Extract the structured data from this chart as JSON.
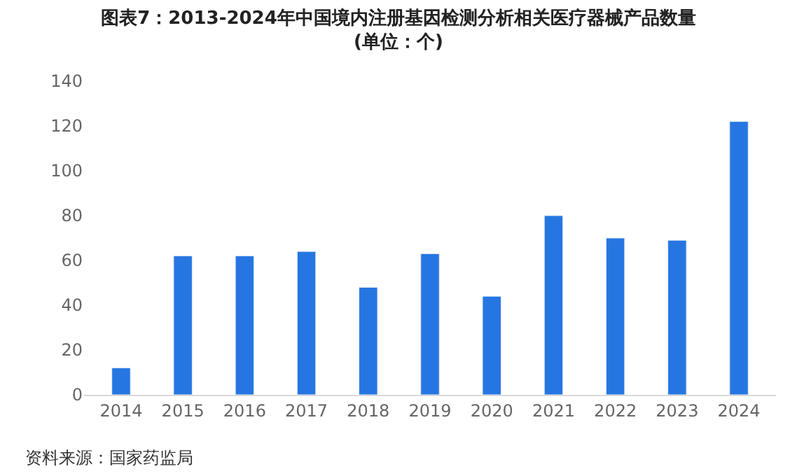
{
  "chart_data": {
    "type": "bar",
    "title": "图表7：2013-2024年中国境内注册基因检测分析相关医疗器械产品数量\n(单位：个)",
    "categories": [
      "2014",
      "2015",
      "2016",
      "2017",
      "2018",
      "2019",
      "2020",
      "2021",
      "2022",
      "2023",
      "2024"
    ],
    "values": [
      12,
      62,
      62,
      64,
      48,
      63,
      44,
      80,
      70,
      69,
      122
    ],
    "color": "#2676e2",
    "ylim": [
      0,
      140
    ],
    "yticks": [
      0,
      20,
      40,
      60,
      80,
      100,
      120,
      140
    ],
    "grid": false,
    "annotations": [
      "资料来源：国家药监局"
    ]
  }
}
